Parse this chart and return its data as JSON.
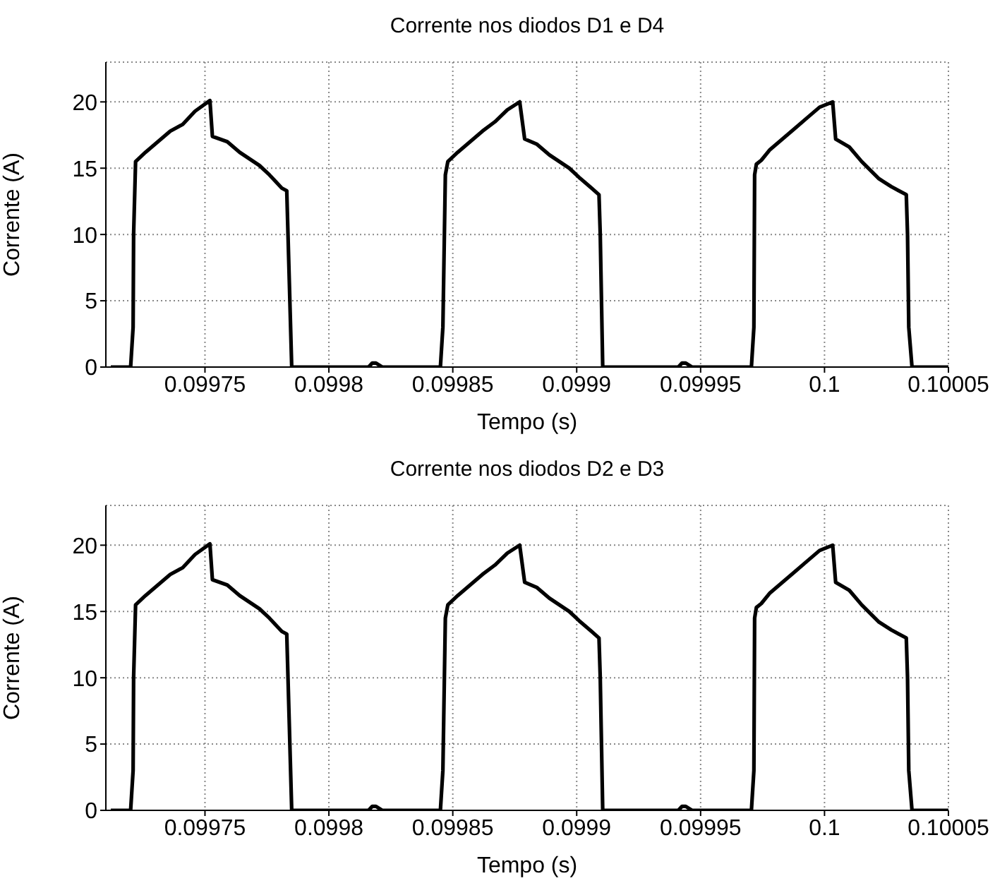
{
  "chart_data": [
    {
      "type": "line",
      "title": "Corrente nos diodos D1 e D4",
      "xlabel": "Tempo (s)",
      "ylabel": "Corrente (A)",
      "xlim": [
        0.09971,
        0.10005
      ],
      "xticks": [
        0.09975,
        0.0998,
        0.09985,
        0.0999,
        0.09995,
        0.1,
        0.10005
      ],
      "ylim": [
        0,
        23
      ],
      "yticks": [
        0,
        5,
        10,
        15,
        20
      ],
      "grid": true,
      "marker": "none",
      "line_style": "solid",
      "series": [
        {
          "color": "#000000",
          "x": [
            0.099712,
            0.09972,
            0.099721,
            0.0997212,
            0.099722,
            0.099726,
            0.099731,
            0.099736,
            0.099741,
            0.099746,
            0.099752,
            0.099753,
            0.099759,
            0.099764,
            0.099772,
            0.099776,
            0.099781,
            0.099783,
            0.0997835,
            0.099785,
            0.099816,
            0.0998175,
            0.099819,
            0.0998215,
            0.099845,
            0.099846,
            0.099847,
            0.099848,
            0.099852,
            0.099857,
            0.099862,
            0.099867,
            0.099872,
            0.099877,
            0.099879,
            0.099884,
            0.099889,
            0.099897,
            0.099901,
            0.099906,
            0.099909,
            0.0999095,
            0.0999105,
            0.099941,
            0.0999425,
            0.099944,
            0.0999465,
            0.0999705,
            0.0999715,
            0.0999718,
            0.0999725,
            0.0999745,
            0.099978,
            0.099983,
            0.099988,
            0.099993,
            0.099998,
            0.1000033,
            0.1000045,
            0.10001,
            0.100015,
            0.100022,
            0.100027,
            0.100033,
            0.1000335,
            0.100034,
            0.1000353,
            0.10005
          ],
          "values": [
            0,
            0,
            3,
            10,
            15.5,
            16.2,
            17,
            17.8,
            18.3,
            19.3,
            20.1,
            17.4,
            17,
            16.2,
            15.2,
            14.5,
            13.5,
            13.3,
            10,
            0,
            0,
            0.3,
            0.3,
            0,
            0,
            3,
            14.5,
            15.5,
            16.2,
            17,
            17.8,
            18.5,
            19.4,
            20,
            17.2,
            16.8,
            16,
            15,
            14.3,
            13.5,
            13,
            10,
            0,
            0,
            0.3,
            0.3,
            0,
            0,
            3,
            14.5,
            15.3,
            15.6,
            16.4,
            17.2,
            18,
            18.8,
            19.6,
            20,
            17.2,
            16.6,
            15.5,
            14.2,
            13.6,
            13,
            10,
            3,
            0,
            0
          ]
        }
      ]
    },
    {
      "type": "line",
      "title": "Corrente nos diodos D2 e D3",
      "xlabel": "Tempo (s)",
      "ylabel": "Corrente (A)",
      "xlim": [
        0.09971,
        0.10005
      ],
      "xticks": [
        0.09975,
        0.0998,
        0.09985,
        0.0999,
        0.09995,
        0.1,
        0.10005
      ],
      "ylim": [
        0,
        23
      ],
      "yticks": [
        0,
        5,
        10,
        15,
        20
      ],
      "grid": true,
      "marker": "none",
      "line_style": "solid",
      "series": [
        {
          "color": "#000000",
          "x": [
            0.099712,
            0.09972,
            0.099721,
            0.0997212,
            0.099722,
            0.099726,
            0.099731,
            0.099736,
            0.099741,
            0.099746,
            0.099752,
            0.099753,
            0.099759,
            0.099764,
            0.099772,
            0.099776,
            0.099781,
            0.099783,
            0.0997835,
            0.099785,
            0.099816,
            0.0998175,
            0.099819,
            0.0998215,
            0.099845,
            0.099846,
            0.099847,
            0.099848,
            0.099852,
            0.099857,
            0.099862,
            0.099867,
            0.099872,
            0.099877,
            0.099879,
            0.099884,
            0.099889,
            0.099897,
            0.099901,
            0.099906,
            0.099909,
            0.0999095,
            0.0999105,
            0.099941,
            0.0999425,
            0.099944,
            0.0999465,
            0.0999705,
            0.0999715,
            0.0999718,
            0.0999725,
            0.0999745,
            0.099978,
            0.099983,
            0.099988,
            0.099993,
            0.099998,
            0.1000033,
            0.1000045,
            0.10001,
            0.100015,
            0.100022,
            0.100027,
            0.100033,
            0.1000335,
            0.100034,
            0.1000353,
            0.10005
          ],
          "values": [
            0,
            0,
            3,
            10,
            15.5,
            16.2,
            17,
            17.8,
            18.3,
            19.3,
            20.1,
            17.4,
            17,
            16.2,
            15.2,
            14.5,
            13.5,
            13.3,
            10,
            0,
            0,
            0.3,
            0.3,
            0,
            0,
            3,
            14.5,
            15.5,
            16.2,
            17,
            17.8,
            18.5,
            19.4,
            20,
            17.2,
            16.8,
            16,
            15,
            14.3,
            13.5,
            13,
            10,
            0,
            0,
            0.3,
            0.3,
            0,
            0,
            3,
            14.5,
            15.3,
            15.6,
            16.4,
            17.2,
            18,
            18.8,
            19.6,
            20,
            17.2,
            16.6,
            15.5,
            14.2,
            13.6,
            13,
            10,
            3,
            0,
            0
          ]
        }
      ]
    }
  ]
}
